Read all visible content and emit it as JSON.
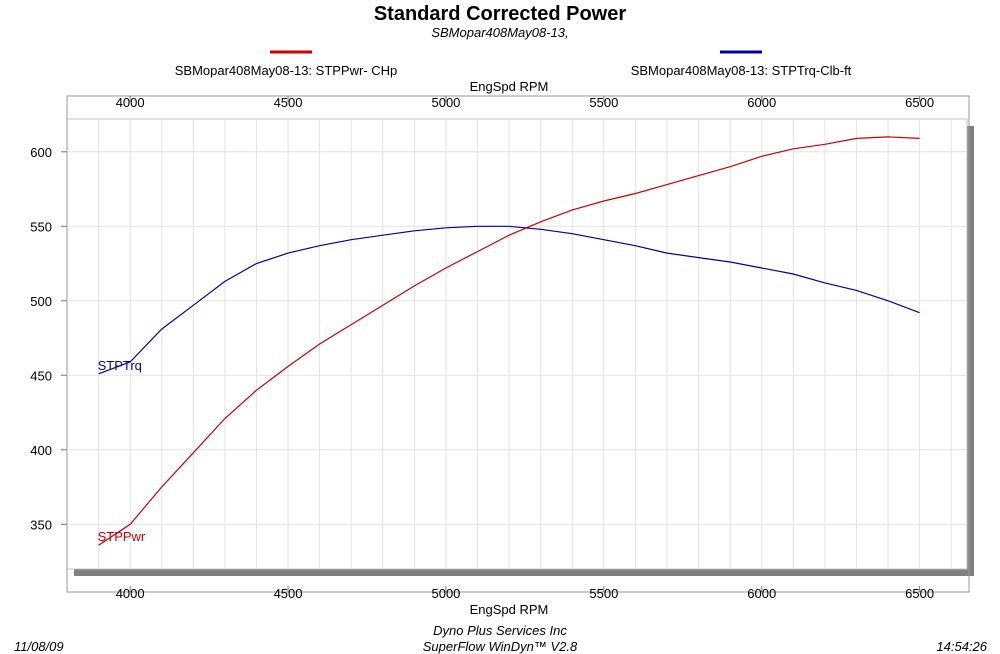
{
  "header": {
    "title": "Standard Corrected Power",
    "subtitle": "SBMopar408May08-13,"
  },
  "legend": [
    {
      "text": "SBMopar408May08-13: STPPwr- CHp",
      "color": "#cc0000"
    },
    {
      "text": "SBMopar408May08-13: STPTrq-Clb-ft",
      "color": "#0000aa"
    }
  ],
  "footer": {
    "date": "11/08/09",
    "company": "Dyno Plus Services Inc",
    "software": "SuperFlow WinDyn™ V2.8",
    "time": "14:54:26"
  },
  "chart_data": {
    "type": "line",
    "xlabel": "EngSpd  RPM",
    "xlim": [
      3800,
      6650
    ],
    "ylim": [
      320,
      622
    ],
    "x_ticks": [
      4000,
      4500,
      5000,
      5500,
      6000,
      6500
    ],
    "y_ticks": [
      350,
      400,
      450,
      500,
      550,
      600
    ],
    "grid": true,
    "legend_position": "top",
    "series": [
      {
        "name": "STPPwr",
        "color": "#cc0000",
        "points": [
          [
            3900,
            336
          ],
          [
            4000,
            350
          ],
          [
            4100,
            375
          ],
          [
            4200,
            398
          ],
          [
            4300,
            421
          ],
          [
            4400,
            440
          ],
          [
            4500,
            456
          ],
          [
            4600,
            471
          ],
          [
            4700,
            484
          ],
          [
            4800,
            497
          ],
          [
            4900,
            510
          ],
          [
            5000,
            522
          ],
          [
            5100,
            533
          ],
          [
            5200,
            544
          ],
          [
            5300,
            553
          ],
          [
            5400,
            561
          ],
          [
            5500,
            567
          ],
          [
            5600,
            572
          ],
          [
            5700,
            578
          ],
          [
            5800,
            584
          ],
          [
            5900,
            590
          ],
          [
            6000,
            597
          ],
          [
            6100,
            602
          ],
          [
            6200,
            605
          ],
          [
            6300,
            609
          ],
          [
            6400,
            610
          ],
          [
            6500,
            609
          ]
        ]
      },
      {
        "name": "STPTrq",
        "color": "#0000aa",
        "points": [
          [
            3900,
            451
          ],
          [
            4000,
            459
          ],
          [
            4100,
            481
          ],
          [
            4200,
            497
          ],
          [
            4300,
            513
          ],
          [
            4400,
            525
          ],
          [
            4500,
            532
          ],
          [
            4600,
            537
          ],
          [
            4700,
            541
          ],
          [
            4800,
            544
          ],
          [
            4900,
            547
          ],
          [
            5000,
            549
          ],
          [
            5100,
            550
          ],
          [
            5200,
            550
          ],
          [
            5300,
            548
          ],
          [
            5400,
            545
          ],
          [
            5500,
            541
          ],
          [
            5600,
            537
          ],
          [
            5700,
            532
          ],
          [
            5800,
            529
          ],
          [
            5900,
            526
          ],
          [
            6000,
            522
          ],
          [
            6100,
            518
          ],
          [
            6200,
            512
          ],
          [
            6300,
            507
          ],
          [
            6400,
            500
          ],
          [
            6500,
            492
          ]
        ]
      }
    ]
  }
}
